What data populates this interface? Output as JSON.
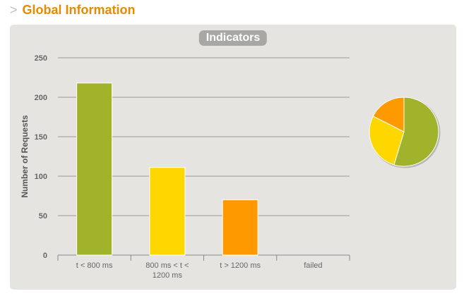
{
  "header": {
    "chevron": ">",
    "title": "Global Information"
  },
  "panel": {
    "badge": "Indicators"
  },
  "chart_data": {
    "type": "bar",
    "ylabel": "Number of Requests",
    "xlabel": "",
    "ylim": [
      0,
      250
    ],
    "yticks": [
      0,
      50,
      100,
      150,
      200,
      250
    ],
    "grid": true,
    "categories": [
      "t < 800 ms",
      "800 ms < t < 1200 ms",
      "t > 1200 ms",
      "failed"
    ],
    "values": [
      218,
      111,
      70,
      0
    ],
    "colors": [
      "#a1b22b",
      "#ffd700",
      "#ff9900",
      "#f15b4f"
    ],
    "pie": {
      "type": "pie",
      "labels": [
        "t < 800 ms",
        "800 ms < t < 1200 ms",
        "t > 1200 ms",
        "failed"
      ],
      "values": [
        218,
        111,
        70,
        0
      ]
    }
  }
}
